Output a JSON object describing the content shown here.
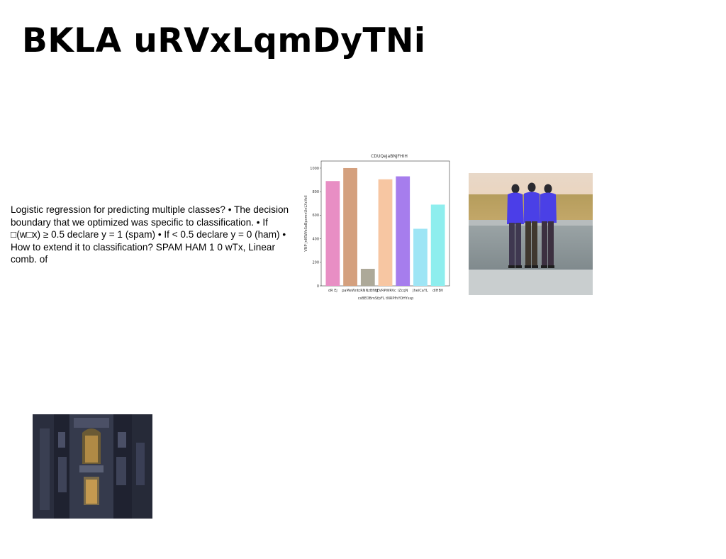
{
  "slide": {
    "title": "BKLA uRVxLqmDyTNi",
    "body": "Logistic regression for predicting multiple classes? • The decision boundary that we optimized was specific to classification. • If □(w□x) ≥ 0.5 declare y = 1 (spam) • If < 0.5 declare y = 0 (ham) • How to extend it to classification? SPAM HAM 1 0 wTx, Linear comb. of"
  },
  "images": {
    "people_photo": "three men in blue shirts leaning on a concrete wall facing a field",
    "building_photo": "ornate dark stone building facade with windows"
  },
  "chart_data": {
    "type": "bar",
    "title": "CDUQeJaBNJFHIH",
    "xlabel": "csBEDBmSfpFL tNRPfhYOHYssp",
    "ylabel": "VNP jnIKWYeSoBpxmnUnLXcYell",
    "categories": [
      "dR Ej",
      "paMeWnt",
      "lcRNNzBfIfg",
      "nEVRPWRVc",
      "iZcqN",
      "JheiCaYL",
      "dlHBV"
    ],
    "values": [
      890,
      1000,
      145,
      905,
      930,
      485,
      690
    ],
    "colors": [
      "#e88ec4",
      "#d4a07e",
      "#ada999",
      "#f7c6a2",
      "#a67ded",
      "#9ee5f5",
      "#8eeeee"
    ],
    "yticks": [
      0,
      200,
      400,
      600,
      800,
      1000
    ],
    "ylim": [
      0,
      1060
    ]
  }
}
